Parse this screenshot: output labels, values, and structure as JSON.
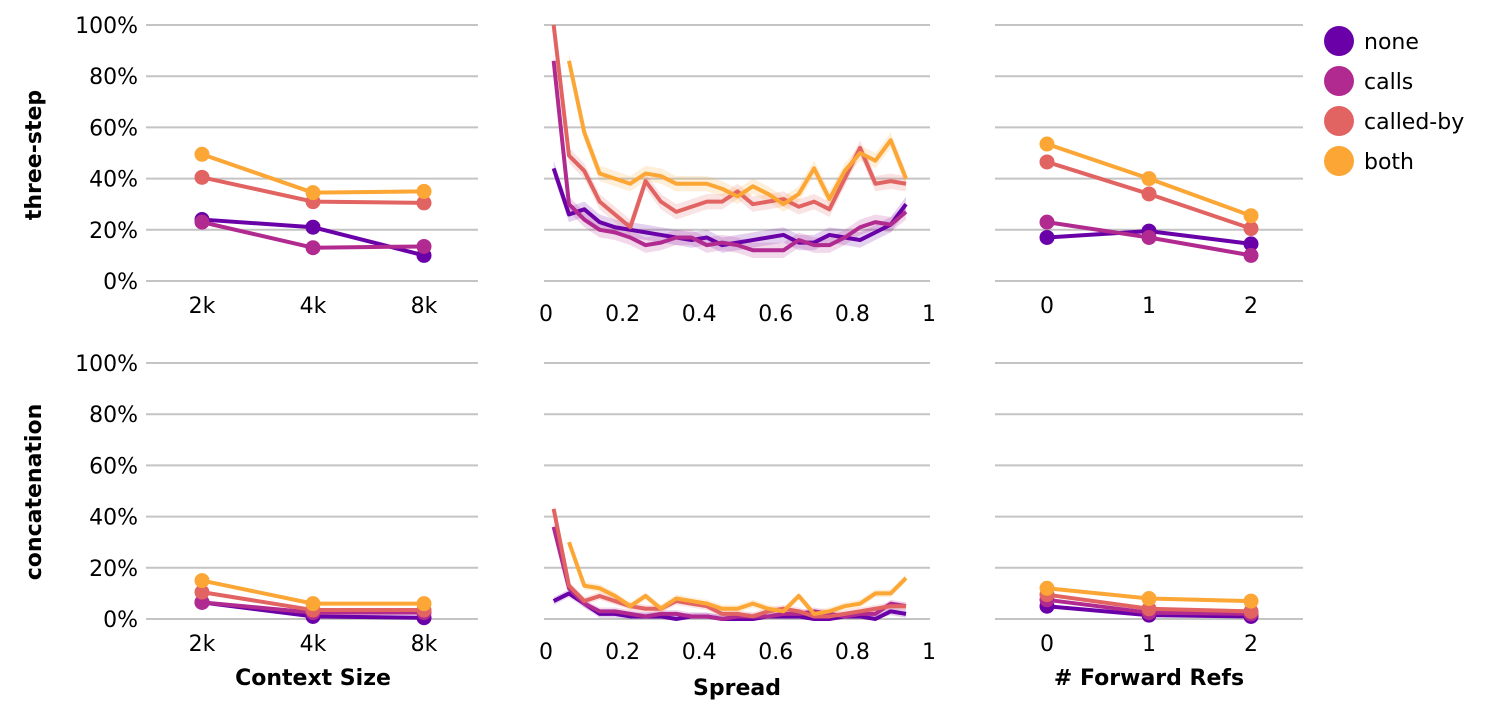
{
  "chart_data": {
    "type": "line",
    "legend": {
      "position": "top-right",
      "entries": [
        {
          "name": "none",
          "color": "#6a00a8"
        },
        {
          "name": "calls",
          "color": "#b12a90"
        },
        {
          "name": "called-by",
          "color": "#e16462"
        },
        {
          "name": "both",
          "color": "#fca636"
        }
      ]
    },
    "rows": [
      {
        "label": "three-step"
      },
      {
        "label": "concatenation"
      }
    ],
    "y_axis": {
      "range": [
        0,
        100
      ],
      "ticks": [
        "0%",
        "20%",
        "40%",
        "60%",
        "80%",
        "100%"
      ],
      "tick_values": [
        0,
        20,
        40,
        60,
        80,
        100
      ]
    },
    "columns": [
      {
        "xlabel": "Context Size",
        "scale": "ordinal",
        "categories": [
          "2k",
          "4k",
          "8k"
        ]
      },
      {
        "xlabel": "Spread",
        "scale": "linear",
        "xlim": [
          0,
          1
        ],
        "ticks": [
          "0",
          "0.2",
          "0.4",
          "0.6",
          "0.8",
          "1"
        ],
        "tick_values": [
          0,
          0.2,
          0.4,
          0.6,
          0.8,
          1
        ]
      },
      {
        "xlabel": "# Forward Refs",
        "scale": "ordinal",
        "categories": [
          "0",
          "1",
          "2"
        ]
      }
    ],
    "panels": {
      "three-step": {
        "Context Size": {
          "none": [
            24,
            21,
            10
          ],
          "calls": [
            23,
            13,
            13.5
          ],
          "called-by": [
            40.5,
            31,
            30.5
          ],
          "both": [
            49.5,
            34.5,
            35
          ]
        },
        "Spread": {
          "none": {
            "x": [
              0.02,
              0.06,
              0.1,
              0.14,
              0.18,
              0.22,
              0.26,
              0.3,
              0.34,
              0.38,
              0.42,
              0.46,
              0.5,
              0.54,
              0.58,
              0.62,
              0.66,
              0.7,
              0.74,
              0.78,
              0.82,
              0.86,
              0.9,
              0.94
            ],
            "y": [
              44,
              26,
              28,
              23,
              21,
              20,
              19,
              18,
              17,
              16,
              17,
              14,
              15,
              16,
              17,
              18,
              15,
              15,
              18,
              17,
              16,
              19,
              22,
              30
            ]
          },
          "calls": {
            "x": [
              0.02,
              0.06,
              0.1,
              0.14,
              0.18,
              0.22,
              0.26,
              0.3,
              0.34,
              0.38,
              0.42,
              0.46,
              0.5,
              0.54,
              0.58,
              0.62,
              0.66,
              0.7,
              0.74,
              0.78,
              0.82,
              0.86,
              0.9,
              0.94
            ],
            "y": [
              86,
              30,
              24,
              20,
              19,
              17,
              14,
              15,
              17,
              17,
              14,
              15,
              14,
              12,
              12,
              12,
              16,
              14,
              14,
              17,
              21,
              23,
              22,
              27
            ]
          },
          "called-by": {
            "x": [
              0.02,
              0.06,
              0.1,
              0.14,
              0.18,
              0.22,
              0.26,
              0.3,
              0.34,
              0.38,
              0.42,
              0.46,
              0.5,
              0.54,
              0.58,
              0.62,
              0.66,
              0.7,
              0.74,
              0.78,
              0.82,
              0.86,
              0.9,
              0.94
            ],
            "y": [
              100,
              49,
              43,
              31,
              26,
              21,
              39,
              31,
              27,
              29,
              31,
              31,
              35,
              30,
              31,
              32,
              29,
              31,
              28,
              40,
              52,
              38,
              39,
              38
            ]
          },
          "both": {
            "x": [
              0.06,
              0.1,
              0.14,
              0.18,
              0.22,
              0.26,
              0.3,
              0.34,
              0.38,
              0.42,
              0.46,
              0.5,
              0.54,
              0.58,
              0.62,
              0.66,
              0.7,
              0.74,
              0.78,
              0.82,
              0.86,
              0.9,
              0.94
            ],
            "y": [
              86,
              58,
              42,
              40,
              38,
              42,
              41,
              38,
              38,
              38,
              36,
              33,
              37,
              34,
              30,
              34,
              44,
              32,
              43,
              50,
              47,
              55,
              40
            ]
          }
        },
        "# Forward Refs": {
          "none": [
            17,
            19.5,
            14.5
          ],
          "calls": [
            23,
            17,
            10
          ],
          "called-by": [
            46.5,
            34,
            20.5
          ],
          "both": [
            53.5,
            40,
            25.5
          ]
        }
      },
      "concatenation": {
        "Context Size": {
          "none": [
            6.5,
            1,
            0.5
          ],
          "calls": [
            6.5,
            2.5,
            2.5
          ],
          "called-by": [
            10.5,
            3.5,
            3.5
          ],
          "both": [
            15,
            6,
            6
          ]
        },
        "Spread": {
          "none": {
            "x": [
              0.02,
              0.06,
              0.1,
              0.14,
              0.18,
              0.22,
              0.26,
              0.3,
              0.34,
              0.38,
              0.42,
              0.46,
              0.5,
              0.54,
              0.58,
              0.62,
              0.66,
              0.7,
              0.74,
              0.78,
              0.82,
              0.86,
              0.9,
              0.94
            ],
            "y": [
              7,
              10,
              6,
              2,
              2,
              1,
              1,
              1,
              0,
              1,
              1,
              0,
              0,
              0,
              1,
              1,
              1,
              0,
              0,
              1,
              1,
              0,
              3,
              2
            ]
          },
          "calls": {
            "x": [
              0.02,
              0.06,
              0.1,
              0.14,
              0.18,
              0.22,
              0.26,
              0.3,
              0.34,
              0.38,
              0.42,
              0.46,
              0.5,
              0.54,
              0.58,
              0.62,
              0.66,
              0.7,
              0.74,
              0.78,
              0.82,
              0.86,
              0.9,
              0.94
            ],
            "y": [
              36,
              12,
              6,
              3,
              3,
              2,
              1,
              2,
              2,
              1,
              1,
              0,
              1,
              1,
              1,
              2,
              2,
              3,
              2,
              1,
              2,
              2,
              6,
              5
            ]
          },
          "called-by": {
            "x": [
              0.02,
              0.06,
              0.1,
              0.14,
              0.18,
              0.22,
              0.26,
              0.3,
              0.34,
              0.38,
              0.42,
              0.46,
              0.5,
              0.54,
              0.58,
              0.62,
              0.66,
              0.7,
              0.74,
              0.78,
              0.82,
              0.86,
              0.9,
              0.94
            ],
            "y": [
              43,
              13,
              7,
              9,
              7,
              5,
              4,
              4,
              7,
              6,
              5,
              2,
              2,
              1,
              3,
              4,
              3,
              1,
              1,
              2,
              3,
              4,
              5,
              5
            ]
          },
          "both": {
            "x": [
              0.06,
              0.1,
              0.14,
              0.18,
              0.22,
              0.26,
              0.3,
              0.34,
              0.38,
              0.42,
              0.46,
              0.5,
              0.54,
              0.58,
              0.62,
              0.66,
              0.7,
              0.74,
              0.78,
              0.82,
              0.86,
              0.9,
              0.94
            ],
            "y": [
              30,
              13,
              12,
              9,
              5,
              9,
              4,
              8,
              7,
              6,
              4,
              4,
              6,
              4,
              3,
              9,
              2,
              3,
              5,
              6,
              10,
              10,
              16
            ]
          }
        },
        "# Forward Refs": {
          "none": [
            5,
            1.5,
            1
          ],
          "calls": [
            7.5,
            2.5,
            2
          ],
          "called-by": [
            9.5,
            4,
            3
          ],
          "both": [
            12,
            8,
            7
          ]
        }
      }
    }
  }
}
